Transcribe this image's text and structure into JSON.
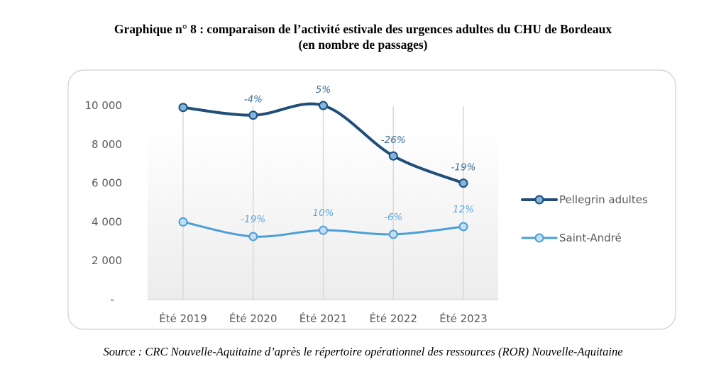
{
  "title": {
    "line1": "Graphique n° 8 :  comparaison de l’activité estivale des urgences adultes du CHU de Bordeaux",
    "line2": "(en nombre de passages)"
  },
  "source": "Source : CRC Nouvelle-Aquitaine d’après le répertoire opérationnel des ressources (ROR) Nouvelle-Aquitaine",
  "chart_data": {
    "type": "line",
    "title": "comparaison de l’activité estivale des urgences adultes du CHU de Bordeaux (en nombre de passages)",
    "xlabel": "",
    "ylabel": "",
    "categories": [
      "Été 2019",
      "Été 2020",
      "Été 2021",
      "Été 2022",
      "Été 2023"
    ],
    "ylim": [
      0,
      10000
    ],
    "yticks": [
      0,
      2000,
      4000,
      6000,
      8000,
      10000
    ],
    "ytick_labels": [
      "-",
      "2 000",
      "4 000",
      "6 000",
      "8 000",
      "10 000"
    ],
    "grid": "vertical",
    "legend": "right",
    "series": [
      {
        "name": "Pellegrin adultes",
        "color": "#1f4e79",
        "marker_fill": "#7fb5de",
        "values": [
          9900,
          9500,
          10000,
          7400,
          6000
        ],
        "labels": [
          "",
          "-4%",
          "5%",
          "-26%",
          "-19%"
        ],
        "label_color": "#3a6e96"
      },
      {
        "name": "Saint-André",
        "color": "#4a9fd8",
        "marker_fill": "#c5def2",
        "values": [
          4000,
          3250,
          3570,
          3360,
          3760
        ],
        "labels": [
          "",
          "-19%",
          "10%",
          "-6%",
          "12%"
        ],
        "label_color": "#5aa7de"
      }
    ]
  }
}
